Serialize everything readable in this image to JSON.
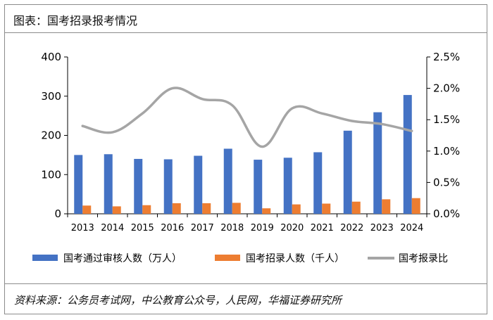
{
  "header": {
    "title": "图表：国考招录报考情况"
  },
  "footer": {
    "source": "资料来源：公务员考试网，中公教育公众号，人民网，华福证券研究所"
  },
  "chart_data": {
    "type": "bar",
    "title": "",
    "categories": [
      "2013",
      "2014",
      "2015",
      "2016",
      "2017",
      "2018",
      "2019",
      "2020",
      "2021",
      "2022",
      "2023",
      "2024"
    ],
    "series": [
      {
        "name": "国考通过审核人数（万人）",
        "type": "bar",
        "axis": "left",
        "color": "#4472C4",
        "values": [
          150,
          152,
          140,
          139,
          148,
          166,
          138,
          143,
          157,
          212,
          259,
          303
        ]
      },
      {
        "name": "国考招录人数（千人）",
        "type": "bar",
        "axis": "left",
        "color": "#ED7D31",
        "values": [
          21,
          19,
          22,
          27,
          27,
          28,
          14,
          24,
          26,
          31,
          37,
          40
        ]
      },
      {
        "name": "国考报录比",
        "type": "line",
        "axis": "right",
        "color": "#A5A5A5",
        "values": [
          1.4,
          1.3,
          1.6,
          2.0,
          1.83,
          1.73,
          1.07,
          1.68,
          1.6,
          1.48,
          1.43,
          1.32
        ]
      }
    ],
    "y_left": {
      "min": 0,
      "max": 400,
      "ticks": [
        "0",
        "100",
        "200",
        "300",
        "400"
      ]
    },
    "y_right": {
      "min": 0,
      "max": 2.5,
      "ticks": [
        "0.0%",
        "0.5%",
        "1.0%",
        "1.5%",
        "2.0%",
        "2.5%"
      ]
    },
    "grid": false,
    "legend_position": "bottom"
  }
}
